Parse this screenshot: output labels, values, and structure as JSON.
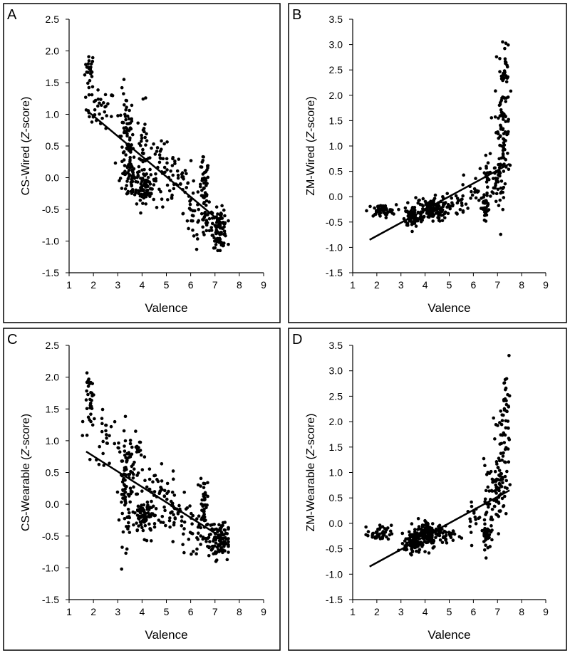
{
  "chart_data": [
    {
      "panel_label": "A",
      "type": "scatter",
      "xlabel": "Valence",
      "ylabel_prefix": "CS-Wired (",
      "ylabel_italic": "Z",
      "ylabel_suffix": "-score)",
      "xlim": [
        1,
        9
      ],
      "ylim": [
        -1.5,
        2.5
      ],
      "x_ticks": [
        "1",
        "2",
        "3",
        "4",
        "5",
        "6",
        "7",
        "8",
        "9"
      ],
      "y_ticks": [
        "-1.5",
        "-1.0",
        "-0.5",
        "0.0",
        "0.5",
        "1.0",
        "1.5",
        "2.0",
        "2.5"
      ],
      "trend_line": [
        [
          1.7,
          1.07
        ],
        [
          7.4,
          -0.75
        ]
      ],
      "clusters": [
        {
          "cx": 1.85,
          "cy": 1.7,
          "sx": 0.1,
          "sy": 0.15,
          "n": 25
        },
        {
          "cx": 2.3,
          "cy": 1.08,
          "sx": 0.3,
          "sy": 0.15,
          "n": 35
        },
        {
          "cx": 3.35,
          "cy": 0.55,
          "sx": 0.15,
          "sy": 0.4,
          "n": 80
        },
        {
          "cx": 3.6,
          "cy": 0.0,
          "sx": 0.2,
          "sy": 0.2,
          "n": 40
        },
        {
          "cx": 4.05,
          "cy": 0.45,
          "sx": 0.12,
          "sy": 0.35,
          "n": 35
        },
        {
          "cx": 4.15,
          "cy": -0.15,
          "sx": 0.2,
          "sy": 0.12,
          "n": 70
        },
        {
          "cx": 4.7,
          "cy": 0.3,
          "sx": 0.35,
          "sy": 0.12,
          "n": 30
        },
        {
          "cx": 5.4,
          "cy": -0.1,
          "sx": 0.4,
          "sy": 0.2,
          "n": 40
        },
        {
          "cx": 6.1,
          "cy": -0.55,
          "sx": 0.2,
          "sy": 0.25,
          "n": 25
        },
        {
          "cx": 6.55,
          "cy": -0.2,
          "sx": 0.1,
          "sy": 0.25,
          "n": 50
        },
        {
          "cx": 6.7,
          "cy": -0.75,
          "sx": 0.2,
          "sy": 0.15,
          "n": 25
        },
        {
          "cx": 7.2,
          "cy": -0.8,
          "sx": 0.15,
          "sy": 0.15,
          "n": 90
        }
      ]
    },
    {
      "panel_label": "B",
      "type": "scatter",
      "xlabel": "Valence",
      "ylabel_prefix": "ZM-Wired (",
      "ylabel_italic": "Z",
      "ylabel_suffix": "-score)",
      "xlim": [
        1,
        9
      ],
      "ylim": [
        -1.5,
        3.5
      ],
      "x_ticks": [
        "1",
        "2",
        "3",
        "4",
        "5",
        "6",
        "7",
        "8",
        "9"
      ],
      "y_ticks": [
        "-1.5",
        "-1.0",
        "-0.5",
        "0.0",
        "0.5",
        "1.0",
        "1.5",
        "2.0",
        "2.5",
        "3.0",
        "3.5"
      ],
      "trend_line": [
        [
          1.7,
          -0.85
        ],
        [
          7.5,
          0.65
        ]
      ],
      "clusters": [
        {
          "cx": 2.2,
          "cy": -0.28,
          "sx": 0.3,
          "sy": 0.06,
          "n": 50
        },
        {
          "cx": 3.5,
          "cy": -0.4,
          "sx": 0.18,
          "sy": 0.1,
          "n": 80
        },
        {
          "cx": 4.2,
          "cy": -0.25,
          "sx": 0.35,
          "sy": 0.12,
          "n": 120
        },
        {
          "cx": 5.0,
          "cy": -0.15,
          "sx": 0.4,
          "sy": 0.12,
          "n": 40
        },
        {
          "cx": 6.0,
          "cy": 0.15,
          "sx": 0.2,
          "sy": 0.2,
          "n": 15
        },
        {
          "cx": 6.5,
          "cy": -0.25,
          "sx": 0.08,
          "sy": 0.15,
          "n": 35
        },
        {
          "cx": 6.6,
          "cy": 0.35,
          "sx": 0.1,
          "sy": 0.3,
          "n": 20
        },
        {
          "cx": 7.0,
          "cy": 0.35,
          "sx": 0.1,
          "sy": 0.2,
          "n": 30
        },
        {
          "cx": 7.2,
          "cy": 1.3,
          "sx": 0.15,
          "sy": 0.65,
          "n": 90
        },
        {
          "cx": 7.35,
          "cy": 2.5,
          "sx": 0.08,
          "sy": 0.35,
          "n": 20
        }
      ]
    },
    {
      "panel_label": "C",
      "type": "scatter",
      "xlabel": "Valence",
      "ylabel_prefix": "CS-Wearable (",
      "ylabel_italic": "Z",
      "ylabel_suffix": "-score)",
      "xlim": [
        1,
        9
      ],
      "ylim": [
        -1.5,
        2.5
      ],
      "x_ticks": [
        "1",
        "2",
        "3",
        "4",
        "5",
        "6",
        "7",
        "8",
        "9"
      ],
      "y_ticks": [
        "-1.5",
        "-1.0",
        "-0.5",
        "0.0",
        "0.5",
        "1.0",
        "1.5",
        "2.0",
        "2.5"
      ],
      "trend_line": [
        [
          1.7,
          0.83
        ],
        [
          7.4,
          -0.55
        ]
      ],
      "clusters": [
        {
          "cx": 1.9,
          "cy": 1.65,
          "sx": 0.12,
          "sy": 0.2,
          "n": 30
        },
        {
          "cx": 2.5,
          "cy": 1.05,
          "sx": 0.3,
          "sy": 0.2,
          "n": 30
        },
        {
          "cx": 3.35,
          "cy": 0.3,
          "sx": 0.15,
          "sy": 0.45,
          "n": 90
        },
        {
          "cx": 3.9,
          "cy": 0.7,
          "sx": 0.15,
          "sy": 0.2,
          "n": 20
        },
        {
          "cx": 4.1,
          "cy": -0.2,
          "sx": 0.25,
          "sy": 0.15,
          "n": 90
        },
        {
          "cx": 4.7,
          "cy": 0.25,
          "sx": 0.35,
          "sy": 0.15,
          "n": 30
        },
        {
          "cx": 5.3,
          "cy": -0.15,
          "sx": 0.35,
          "sy": 0.15,
          "n": 35
        },
        {
          "cx": 6.0,
          "cy": -0.45,
          "sx": 0.3,
          "sy": 0.15,
          "n": 30
        },
        {
          "cx": 6.55,
          "cy": 0.05,
          "sx": 0.08,
          "sy": 0.2,
          "n": 40
        },
        {
          "cx": 7.0,
          "cy": -0.55,
          "sx": 0.3,
          "sy": 0.15,
          "n": 70
        },
        {
          "cx": 7.25,
          "cy": -0.6,
          "sx": 0.12,
          "sy": 0.15,
          "n": 40
        }
      ]
    },
    {
      "panel_label": "D",
      "type": "scatter",
      "xlabel": "Valence",
      "ylabel_prefix": "ZM-Wearable (",
      "ylabel_italic": "Z",
      "ylabel_suffix": "-score)",
      "xlim": [
        1,
        9
      ],
      "ylim": [
        -1.5,
        3.5
      ],
      "x_ticks": [
        "1",
        "2",
        "3",
        "4",
        "5",
        "6",
        "7",
        "8",
        "9"
      ],
      "y_ticks": [
        "-1.5",
        "-1.0",
        "-0.5",
        "0.0",
        "0.5",
        "1.0",
        "1.5",
        "2.0",
        "2.5",
        "3.0",
        "3.5"
      ],
      "trend_line": [
        [
          1.7,
          -0.85
        ],
        [
          7.5,
          0.65
        ]
      ],
      "clusters": [
        {
          "cx": 2.1,
          "cy": -0.2,
          "sx": 0.25,
          "sy": 0.08,
          "n": 40
        },
        {
          "cx": 3.5,
          "cy": -0.38,
          "sx": 0.18,
          "sy": 0.1,
          "n": 90
        },
        {
          "cx": 4.1,
          "cy": -0.2,
          "sx": 0.2,
          "sy": 0.15,
          "n": 100
        },
        {
          "cx": 4.8,
          "cy": -0.22,
          "sx": 0.4,
          "sy": 0.1,
          "n": 50
        },
        {
          "cx": 6.0,
          "cy": 0.15,
          "sx": 0.15,
          "sy": 0.2,
          "n": 15
        },
        {
          "cx": 6.55,
          "cy": -0.2,
          "sx": 0.08,
          "sy": 0.15,
          "n": 35
        },
        {
          "cx": 6.6,
          "cy": 0.4,
          "sx": 0.12,
          "sy": 0.4,
          "n": 30
        },
        {
          "cx": 7.0,
          "cy": 0.7,
          "sx": 0.15,
          "sy": 0.35,
          "n": 50
        },
        {
          "cx": 7.2,
          "cy": 1.3,
          "sx": 0.15,
          "sy": 0.5,
          "n": 50
        },
        {
          "cx": 7.35,
          "cy": 2.4,
          "sx": 0.08,
          "sy": 0.35,
          "n": 25
        }
      ]
    }
  ]
}
